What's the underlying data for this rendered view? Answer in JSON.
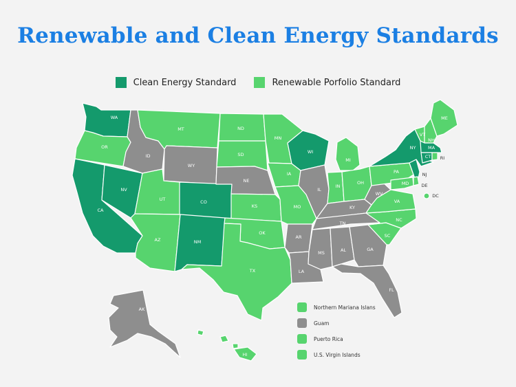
{
  "title": "Renewable and Clean Energy Standards",
  "colors": {
    "clean": "#149a6c",
    "rps": "#57d46e",
    "none": "#8e8e8e",
    "background": "#f3f3f3",
    "title": "#1b7fe3"
  },
  "legend": {
    "clean_label": "Clean Energy Standard",
    "rps_label": "Renewable Porfolio Standard"
  },
  "states": [
    {
      "code": "WA",
      "status": "clean"
    },
    {
      "code": "OR",
      "status": "rps"
    },
    {
      "code": "CA",
      "status": "clean"
    },
    {
      "code": "NV",
      "status": "clean"
    },
    {
      "code": "ID",
      "status": "none"
    },
    {
      "code": "MT",
      "status": "rps"
    },
    {
      "code": "WY",
      "status": "none"
    },
    {
      "code": "UT",
      "status": "rps"
    },
    {
      "code": "CO",
      "status": "clean"
    },
    {
      "code": "AZ",
      "status": "rps"
    },
    {
      "code": "NM",
      "status": "clean"
    },
    {
      "code": "ND",
      "status": "rps"
    },
    {
      "code": "SD",
      "status": "rps"
    },
    {
      "code": "NE",
      "status": "none"
    },
    {
      "code": "KS",
      "status": "rps"
    },
    {
      "code": "OK",
      "status": "rps"
    },
    {
      "code": "TX",
      "status": "rps"
    },
    {
      "code": "MN",
      "status": "rps"
    },
    {
      "code": "IA",
      "status": "rps"
    },
    {
      "code": "MO",
      "status": "rps"
    },
    {
      "code": "AR",
      "status": "none"
    },
    {
      "code": "LA",
      "status": "none"
    },
    {
      "code": "WI",
      "status": "clean"
    },
    {
      "code": "IL",
      "status": "none"
    },
    {
      "code": "MI",
      "status": "rps"
    },
    {
      "code": "IN",
      "status": "rps"
    },
    {
      "code": "OH",
      "status": "rps"
    },
    {
      "code": "KY",
      "status": "none"
    },
    {
      "code": "TN",
      "status": "none"
    },
    {
      "code": "MS",
      "status": "none"
    },
    {
      "code": "AL",
      "status": "none"
    },
    {
      "code": "GA",
      "status": "none"
    },
    {
      "code": "FL",
      "status": "none"
    },
    {
      "code": "SC",
      "status": "rps"
    },
    {
      "code": "NC",
      "status": "rps"
    },
    {
      "code": "VA",
      "status": "rps"
    },
    {
      "code": "WV",
      "status": "none"
    },
    {
      "code": "PA",
      "status": "rps"
    },
    {
      "code": "NY",
      "status": "clean"
    },
    {
      "code": "VT",
      "status": "rps"
    },
    {
      "code": "NH",
      "status": "rps"
    },
    {
      "code": "ME",
      "status": "rps"
    },
    {
      "code": "MA",
      "status": "clean"
    },
    {
      "code": "CT",
      "status": "clean"
    },
    {
      "code": "RI",
      "status": "rps"
    },
    {
      "code": "NJ",
      "status": "clean"
    },
    {
      "code": "DE",
      "status": "rps"
    },
    {
      "code": "MD",
      "status": "rps"
    },
    {
      "code": "DC",
      "status": "rps"
    },
    {
      "code": "AK",
      "status": "none"
    },
    {
      "code": "HI",
      "status": "rps"
    }
  ],
  "territories": [
    {
      "name": "Northern Mariana Islans",
      "status": "rps"
    },
    {
      "name": "Guam",
      "status": "none"
    },
    {
      "name": "Puerto Rica",
      "status": "rps"
    },
    {
      "name": "U.S. Virgin Islands",
      "status": "rps"
    }
  ]
}
